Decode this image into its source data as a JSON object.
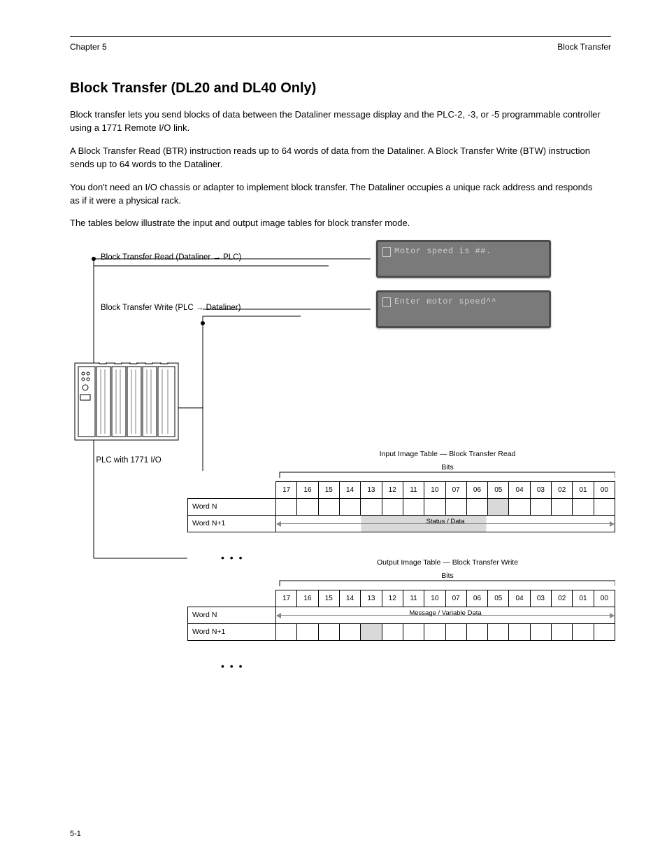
{
  "header": {
    "left": "Chapter 5",
    "right": "Block Transfer"
  },
  "title": "Block Transfer (DL20 and DL40 Only)",
  "paragraphs": [
    "Block transfer lets you send blocks of data between the Dataliner message display and the PLC-2, -3, or -5 programmable controller using a 1771 Remote I/O link.",
    "A Block Transfer Read (BTR) instruction reads up to 64 words of data from the Dataliner. A Block Transfer Write (BTW) instruction sends up to 64 words to the Dataliner.",
    "You don't need an I/O chassis or adapter to implement block transfer. The Dataliner occupies a unique rack address and responds as if it were a physical rack.",
    "The tables below illustrate the input and output image tables for block transfer mode."
  ],
  "lcd": {
    "line1": "Motor speed is ##.",
    "line2": "Enter motor speed^^"
  },
  "labels": {
    "read_ptr": "Block Transfer Read (Dataliner → PLC)",
    "write_ptr": "Block Transfer Write (PLC → Dataliner)",
    "plc_caption": "PLC with 1771 I/O"
  },
  "bits_header": [
    "17",
    "16",
    "15",
    "14",
    "13",
    "12",
    "11",
    "10",
    "07",
    "06",
    "05",
    "04",
    "03",
    "02",
    "01",
    "00"
  ],
  "read_table": {
    "title": "Input Image Table — Block Transfer Read",
    "rows": [
      {
        "label": "Word N",
        "shaded": [
          10
        ],
        "arrow": false
      },
      {
        "label": "Word N+1",
        "shaded": [
          4,
          5,
          6,
          7,
          8,
          9
        ],
        "arrow": true,
        "arrow_label": "Status / Data"
      }
    ]
  },
  "write_table": {
    "title": "Output Image Table — Block Transfer Write",
    "rows": [
      {
        "label": "Word N",
        "shaded": [],
        "arrow": true,
        "arrow_label": "Message / Variable Data"
      },
      {
        "label": "Word N+1",
        "shaded": [
          4
        ],
        "arrow": false
      }
    ]
  },
  "bits_caption": "Bits",
  "footer": "5-1"
}
